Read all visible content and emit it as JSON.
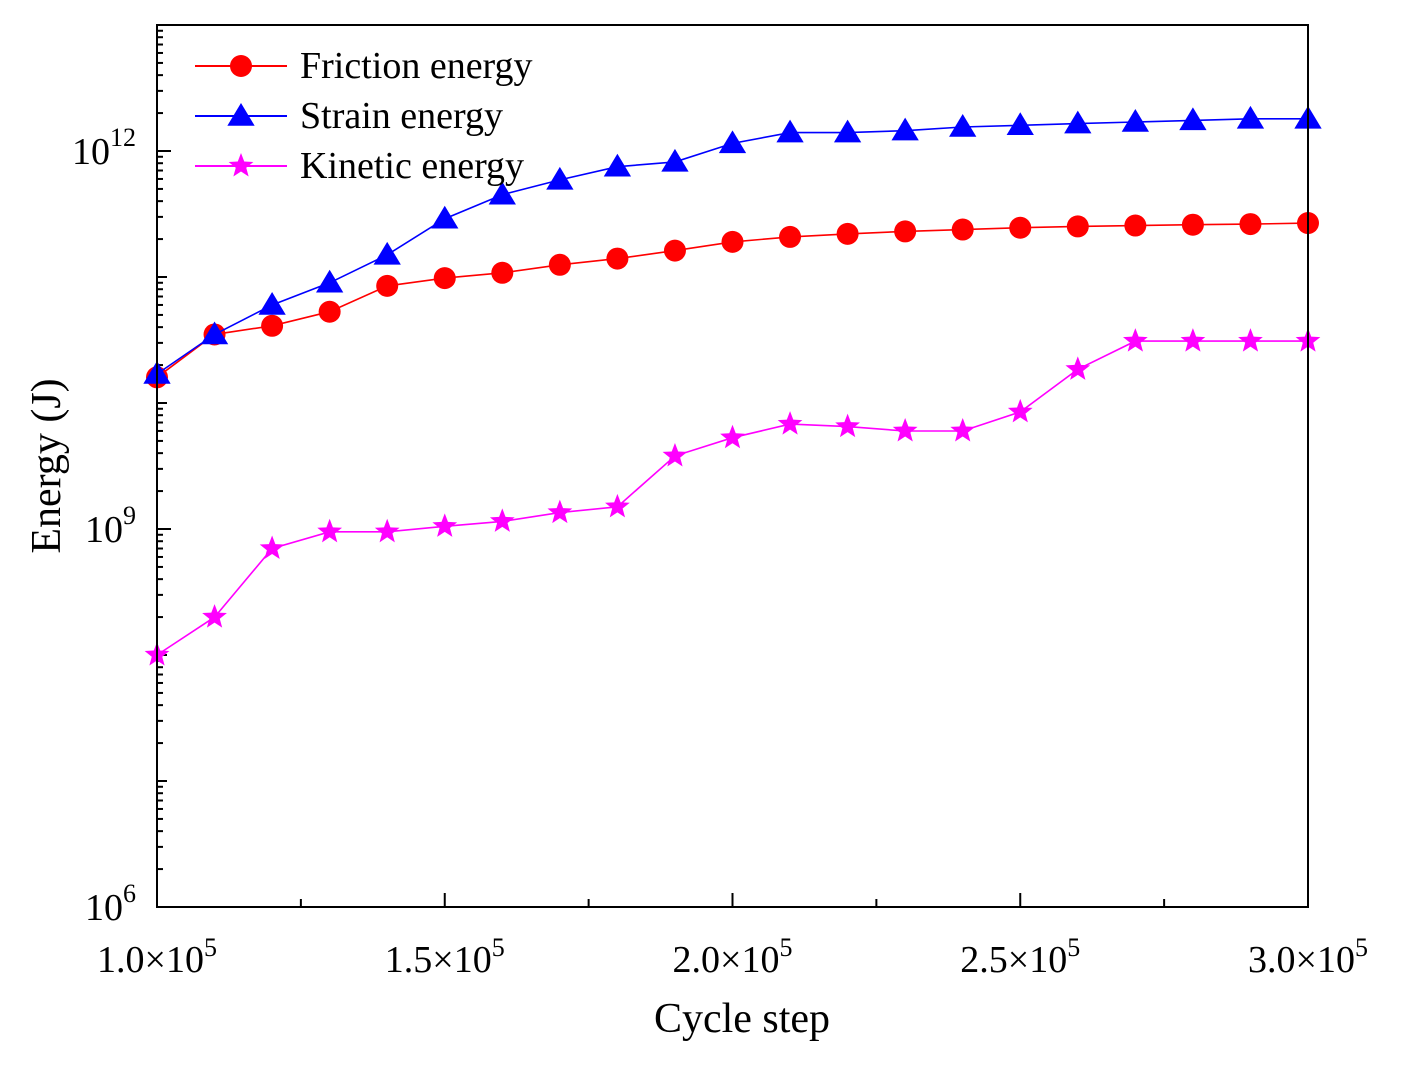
{
  "chart_data": {
    "type": "line",
    "title": "",
    "xlabel": "Cycle step",
    "ylabel": "Energy (J)",
    "xlim": [
      100000,
      300000
    ],
    "ylim": [
      1000000,
      10000000000000
    ],
    "yscale": "log",
    "x_ticks": [
      {
        "value": 100000,
        "mant": "1.0",
        "exp": "5"
      },
      {
        "value": 150000,
        "mant": "1.5",
        "exp": "5"
      },
      {
        "value": 200000,
        "mant": "2.0",
        "exp": "5"
      },
      {
        "value": 250000,
        "mant": "2.5",
        "exp": "5"
      },
      {
        "value": 300000,
        "mant": "3.0",
        "exp": "5"
      }
    ],
    "y_ticks": [
      {
        "value": 1000000,
        "base": "10",
        "exp": "6"
      },
      {
        "value": 1000000000,
        "base": "10",
        "exp": "9"
      },
      {
        "value": 1000000000000,
        "base": "10",
        "exp": "12"
      }
    ],
    "x": [
      100000,
      110000,
      120000,
      130000,
      140000,
      150000,
      160000,
      170000,
      180000,
      190000,
      200000,
      210000,
      220000,
      230000,
      240000,
      250000,
      260000,
      270000,
      280000,
      290000,
      300000
    ],
    "series": [
      {
        "name": "Friction energy",
        "color": "#ff0000",
        "marker": "circle",
        "values": [
          16000000000.0,
          35000000000.0,
          41000000000.0,
          53000000000.0,
          85000000000.0,
          98000000000.0,
          108000000000.0,
          125000000000.0,
          140000000000.0,
          162000000000.0,
          190000000000.0,
          208000000000.0,
          220000000000.0,
          230000000000.0,
          238000000000.0,
          246000000000.0,
          252000000000.0,
          256000000000.0,
          260000000000.0,
          263000000000.0,
          268000000000.0
        ]
      },
      {
        "name": "Strain energy",
        "color": "#0000ff",
        "marker": "triangle",
        "values": [
          17000000000.0,
          35000000000.0,
          60000000000.0,
          90000000000.0,
          150000000000.0,
          290000000000.0,
          450000000000.0,
          590000000000.0,
          750000000000.0,
          820000000000.0,
          1150000000000.0,
          1400000000000.0,
          1400000000000.0,
          1450000000000.0,
          1550000000000.0,
          1600000000000.0,
          1650000000000.0,
          1700000000000.0,
          1750000000000.0,
          1800000000000.0,
          1800000000000.0
        ]
      },
      {
        "name": "Kinetic energy",
        "color": "#ff00ff",
        "marker": "star",
        "values": [
          100000000.0,
          200000000.0,
          700000000.0,
          950000000.0,
          950000000.0,
          1050000000.0,
          1150000000.0,
          1350000000.0,
          1500000000.0,
          3800000000.0,
          5300000000.0,
          6800000000.0,
          6500000000.0,
          6000000000.0,
          6000000000.0,
          8500000000.0,
          18500000000.0,
          31000000000.0,
          31000000000.0,
          31000000000.0,
          31000000000.0
        ]
      }
    ],
    "legend_position": "top-left"
  }
}
